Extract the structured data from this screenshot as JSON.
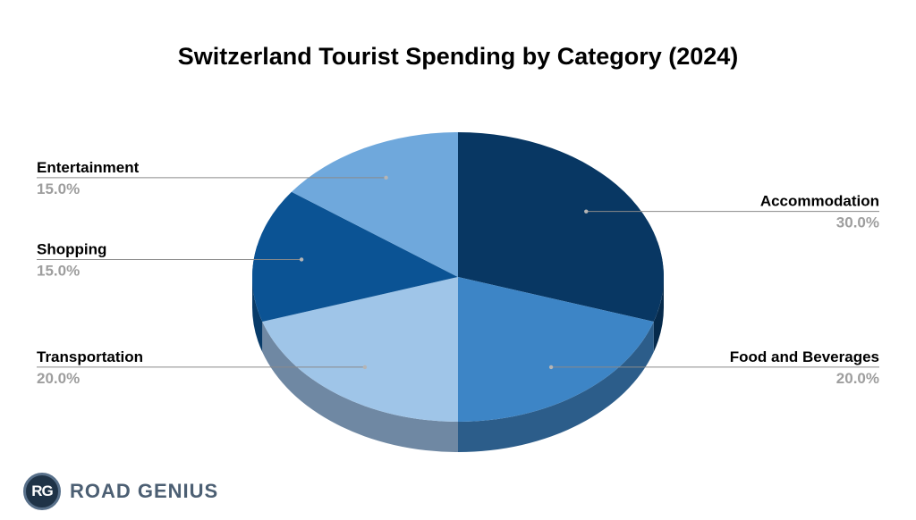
{
  "chart_data": {
    "type": "pie",
    "title": "Switzerland Tourist Spending by Category (2024)",
    "slices": [
      {
        "label": "Accommodation",
        "value": 30.0,
        "display": "30.0%",
        "color": "#083763",
        "side_color": "#062a4b",
        "label_side": "right"
      },
      {
        "label": "Food and Beverages",
        "value": 20.0,
        "display": "20.0%",
        "color": "#3d85c6",
        "side_color": "#2c5d8a",
        "label_side": "right"
      },
      {
        "label": "Transportation",
        "value": 20.0,
        "display": "20.0%",
        "color": "#9fc5e8",
        "side_color": "#6f88a3",
        "label_side": "left"
      },
      {
        "label": "Shopping",
        "value": 15.0,
        "display": "15.0%",
        "color": "#0b5394",
        "side_color": "#083b69",
        "label_side": "left"
      },
      {
        "label": "Entertainment",
        "value": 15.0,
        "display": "15.0%",
        "color": "#6fa8dc",
        "side_color": "#4e7ba3",
        "label_side": "left"
      }
    ],
    "style": "3d",
    "legend": "none"
  },
  "branding": {
    "logo_initials": "RG",
    "logo_text": "ROAD GENIUS"
  }
}
